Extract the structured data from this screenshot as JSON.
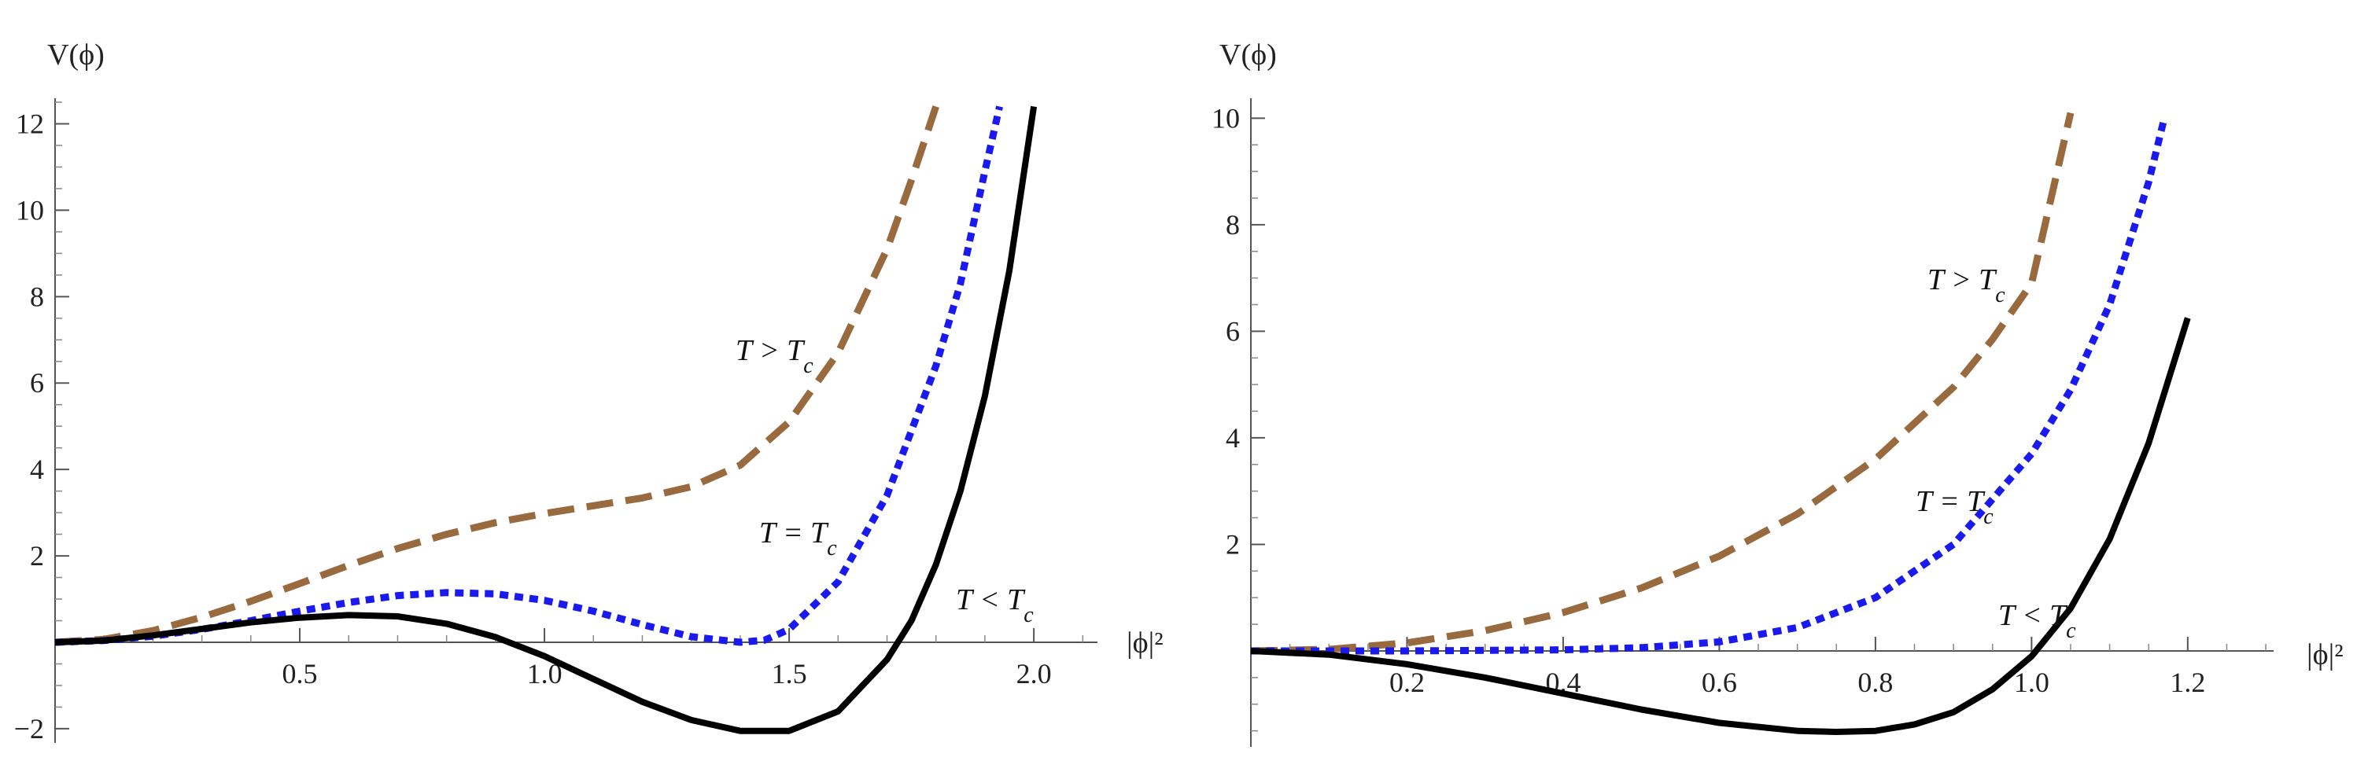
{
  "chart_data": [
    {
      "type": "line",
      "title": "",
      "ylabel": "V(ϕ)",
      "xlabel": "|ϕ|²",
      "xlim": [
        0,
        2.13
      ],
      "ylim": [
        -2.3,
        12.5
      ],
      "x_ticks": [
        "0.5",
        "1.0",
        "1.5",
        "2.0"
      ],
      "y_ticks": [
        "−2",
        "2",
        "4",
        "6",
        "8",
        "10",
        "12"
      ],
      "grid": false,
      "series": [
        {
          "label": "T > T_c",
          "color": "#9a6a3f",
          "style": "dashed",
          "x": [
            0,
            0.1,
            0.2,
            0.3,
            0.4,
            0.5,
            0.6,
            0.7,
            0.8,
            0.9,
            1.0,
            1.1,
            1.2,
            1.3,
            1.4,
            1.5,
            1.6,
            1.7,
            1.75,
            1.8
          ],
          "y": [
            0,
            0.07,
            0.27,
            0.58,
            0.95,
            1.36,
            1.78,
            2.17,
            2.5,
            2.77,
            2.98,
            3.16,
            3.34,
            3.6,
            4.1,
            5.1,
            6.7,
            9.1,
            10.7,
            12.4
          ]
        },
        {
          "label": "T = T_c",
          "color": "#1a1aee",
          "style": "dotted",
          "x": [
            0,
            0.1,
            0.2,
            0.3,
            0.4,
            0.5,
            0.6,
            0.7,
            0.8,
            0.9,
            1.0,
            1.1,
            1.2,
            1.3,
            1.4,
            1.45,
            1.5,
            1.6,
            1.7,
            1.8,
            1.85,
            1.9,
            1.93
          ],
          "y": [
            0,
            0.04,
            0.14,
            0.3,
            0.5,
            0.72,
            0.92,
            1.08,
            1.15,
            1.12,
            0.97,
            0.72,
            0.41,
            0.13,
            0,
            0.05,
            0.3,
            1.4,
            3.4,
            6.4,
            8.3,
            10.9,
            12.4
          ]
        },
        {
          "label": "T < T_c",
          "color": "#000000",
          "style": "solid",
          "x": [
            0,
            0.1,
            0.2,
            0.3,
            0.4,
            0.5,
            0.6,
            0.7,
            0.8,
            0.9,
            1.0,
            1.1,
            1.2,
            1.3,
            1.4,
            1.5,
            1.6,
            1.7,
            1.75,
            1.8,
            1.85,
            1.9,
            1.95,
            2.0
          ],
          "y": [
            0,
            0.04,
            0.16,
            0.31,
            0.46,
            0.57,
            0.63,
            0.6,
            0.43,
            0.12,
            -0.32,
            -0.85,
            -1.38,
            -1.8,
            -2.05,
            -2.05,
            -1.6,
            -0.4,
            0.5,
            1.8,
            3.5,
            5.7,
            8.6,
            12.4
          ]
        }
      ]
    },
    {
      "type": "line",
      "title": "",
      "ylabel": "V(ϕ)",
      "xlabel": "|ϕ|²",
      "xlim": [
        0,
        1.31
      ],
      "ylim": [
        -1.85,
        10.3
      ],
      "x_ticks": [
        "0.2",
        "0.4",
        "0.6",
        "0.8",
        "1.0",
        "1.2"
      ],
      "y_ticks": [
        "2",
        "4",
        "6",
        "8",
        "10"
      ],
      "grid": false,
      "series": [
        {
          "label": "T > T_c",
          "color": "#9a6a3f",
          "style": "dashed",
          "x": [
            0,
            0.1,
            0.2,
            0.3,
            0.4,
            0.5,
            0.6,
            0.7,
            0.8,
            0.9,
            0.95,
            1.0,
            1.05
          ],
          "y": [
            0,
            0.03,
            0.15,
            0.38,
            0.72,
            1.18,
            1.78,
            2.57,
            3.6,
            4.95,
            5.85,
            6.9,
            10.1
          ]
        },
        {
          "label": "T = T_c",
          "color": "#1a1aee",
          "style": "dotted",
          "x": [
            0,
            0.1,
            0.2,
            0.3,
            0.4,
            0.5,
            0.6,
            0.7,
            0.8,
            0.9,
            1.0,
            1.05,
            1.1,
            1.15,
            1.17
          ],
          "y": [
            0,
            0,
            0,
            0.01,
            0.02,
            0.06,
            0.17,
            0.44,
            1.0,
            2.0,
            3.7,
            4.9,
            6.5,
            8.8,
            10.0
          ]
        },
        {
          "label": "T < T_c",
          "color": "#000000",
          "style": "solid",
          "x": [
            0,
            0.1,
            0.2,
            0.3,
            0.4,
            0.5,
            0.6,
            0.7,
            0.75,
            0.8,
            0.85,
            0.9,
            0.95,
            1.0,
            1.05,
            1.1,
            1.15,
            1.2
          ],
          "y": [
            0,
            -0.07,
            -0.25,
            -0.5,
            -0.8,
            -1.1,
            -1.35,
            -1.5,
            -1.52,
            -1.5,
            -1.38,
            -1.15,
            -0.72,
            -0.1,
            0.8,
            2.1,
            3.9,
            6.25
          ]
        }
      ]
    }
  ]
}
